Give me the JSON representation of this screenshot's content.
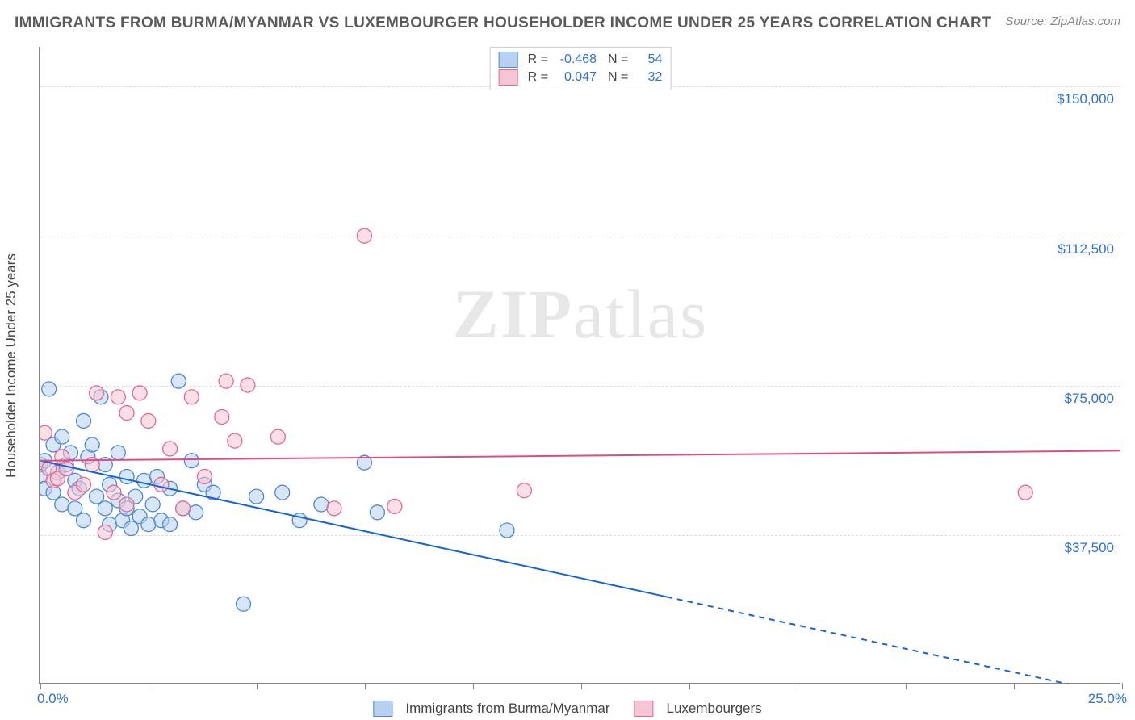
{
  "header": {
    "title": "IMMIGRANTS FROM BURMA/MYANMAR VS LUXEMBOURGER HOUSEHOLDER INCOME UNDER 25 YEARS CORRELATION CHART",
    "source_label": "Source:",
    "source_link": "ZipAtlas.com"
  },
  "watermark": {
    "a": "ZIP",
    "b": "atlas"
  },
  "chart": {
    "type": "scatter",
    "ylabel": "Householder Income Under 25 years",
    "xlim": [
      0,
      25
    ],
    "ylim": [
      0,
      160000
    ],
    "x_ticks": [
      0,
      2.5,
      5,
      7.5,
      10,
      12.5,
      15,
      17.5,
      20,
      22.5,
      25
    ],
    "x_tick_labels": {
      "0": "0.0%",
      "25": "25.0%"
    },
    "y_gridlines": [
      37500,
      75000,
      112500,
      150000
    ],
    "y_tick_labels": {
      "37500": "$37,500",
      "75000": "$75,000",
      "112500": "$112,500",
      "150000": "$150,000"
    },
    "grid_color": "#dddddd",
    "axis_color": "#888888",
    "marker_radius": 9,
    "marker_stroke_width": 1.3,
    "series": [
      {
        "id": "burma",
        "label": "Immigrants from Burma/Myanmar",
        "fill": "#b8d1f0",
        "stroke": "#4a8ad4",
        "fill_opacity": 0.55,
        "r_value": "-0.468",
        "n_value": "54",
        "regression": {
          "x1": 0,
          "y1": 56000,
          "x2": 25,
          "y2": -3000,
          "solid_until_x": 14.5,
          "color": "#1565d8",
          "width": 2
        },
        "points": [
          [
            0.0,
            55000
          ],
          [
            0.0,
            52000
          ],
          [
            0.1,
            56000
          ],
          [
            0.1,
            49000
          ],
          [
            0.2,
            74000
          ],
          [
            0.3,
            60000
          ],
          [
            0.3,
            48000
          ],
          [
            0.4,
            53000
          ],
          [
            0.5,
            62000
          ],
          [
            0.5,
            45000
          ],
          [
            0.6,
            55000
          ],
          [
            0.7,
            58000
          ],
          [
            0.8,
            51000
          ],
          [
            0.8,
            44000
          ],
          [
            0.9,
            49000
          ],
          [
            1.0,
            66000
          ],
          [
            1.0,
            41000
          ],
          [
            1.1,
            57000
          ],
          [
            1.2,
            60000
          ],
          [
            1.3,
            47000
          ],
          [
            1.4,
            72000
          ],
          [
            1.5,
            44000
          ],
          [
            1.5,
            55000
          ],
          [
            1.6,
            50000
          ],
          [
            1.6,
            40000
          ],
          [
            1.8,
            58000
          ],
          [
            1.8,
            46000
          ],
          [
            1.9,
            41000
          ],
          [
            2.0,
            52000
          ],
          [
            2.0,
            44000
          ],
          [
            2.1,
            39000
          ],
          [
            2.2,
            47000
          ],
          [
            2.3,
            42000
          ],
          [
            2.4,
            51000
          ],
          [
            2.5,
            40000
          ],
          [
            2.6,
            45000
          ],
          [
            2.7,
            52000
          ],
          [
            2.8,
            41000
          ],
          [
            3.0,
            49000
          ],
          [
            3.0,
            40000
          ],
          [
            3.2,
            76000
          ],
          [
            3.3,
            44000
          ],
          [
            3.5,
            56000
          ],
          [
            3.6,
            43000
          ],
          [
            3.8,
            50000
          ],
          [
            4.0,
            48000
          ],
          [
            4.7,
            20000
          ],
          [
            5.0,
            47000
          ],
          [
            5.6,
            48000
          ],
          [
            6.0,
            41000
          ],
          [
            6.5,
            45000
          ],
          [
            7.5,
            55500
          ],
          [
            7.8,
            43000
          ],
          [
            10.8,
            38500
          ]
        ]
      },
      {
        "id": "lux",
        "label": "Luxembourgers",
        "fill": "#f6c5d4",
        "stroke": "#e06a94",
        "fill_opacity": 0.55,
        "r_value": "0.047",
        "n_value": "32",
        "regression": {
          "x1": 0,
          "y1": 56000,
          "x2": 25,
          "y2": 58500,
          "solid_until_x": 25,
          "color": "#e14b84",
          "width": 2
        },
        "points": [
          [
            0.1,
            63000
          ],
          [
            0.2,
            54000
          ],
          [
            0.3,
            51000
          ],
          [
            0.4,
            51500
          ],
          [
            0.5,
            57000
          ],
          [
            0.6,
            54000
          ],
          [
            0.8,
            48000
          ],
          [
            1.0,
            50000
          ],
          [
            1.2,
            55000
          ],
          [
            1.3,
            73000
          ],
          [
            1.5,
            38000
          ],
          [
            1.7,
            48000
          ],
          [
            1.8,
            72000
          ],
          [
            2.0,
            45000
          ],
          [
            2.0,
            68000
          ],
          [
            2.3,
            73000
          ],
          [
            2.5,
            66000
          ],
          [
            2.8,
            50000
          ],
          [
            3.0,
            59000
          ],
          [
            3.3,
            44000
          ],
          [
            3.5,
            72000
          ],
          [
            3.8,
            52000
          ],
          [
            4.2,
            67000
          ],
          [
            4.3,
            76000
          ],
          [
            4.5,
            61000
          ],
          [
            4.8,
            75000
          ],
          [
            5.5,
            62000
          ],
          [
            6.8,
            44000
          ],
          [
            7.5,
            112500
          ],
          [
            8.2,
            44500
          ],
          [
            11.2,
            48500
          ],
          [
            22.8,
            48000
          ]
        ]
      }
    ],
    "stats_box": {
      "r_label": "R =",
      "n_label": "N ="
    },
    "legend_bottom_labels": [
      "Immigrants from Burma/Myanmar",
      "Luxembourgers"
    ]
  }
}
